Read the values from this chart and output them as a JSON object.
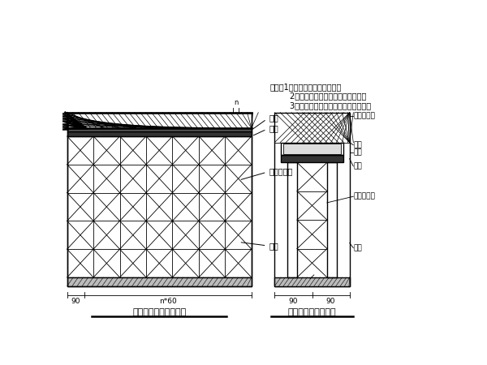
{
  "bg_color": "#ffffff",
  "line_color": "#000000",
  "title_left": "叠梁施工支架横断面图",
  "title_right": "叠梁施工支架立面图",
  "notes_line1": "说明：1、本图尺寸均以毫米计，",
  "notes_line2": "        2、支架底都坐在处理好的地基上，",
  "notes_line3": "        3、支架高度根据墩柱高度进行调垫，",
  "labels_left": [
    "横梁",
    "纵梁",
    "碗扣式支架",
    "墩柱"
  ],
  "labels_right": [
    "安全防护网",
    "侧模",
    "横梁",
    "纵梁",
    "碗扣式支架",
    "墩柱"
  ],
  "dim_left_90": "90",
  "dim_left_n60": "n*60",
  "dim_right_left": "90",
  "dim_right_right": "90"
}
